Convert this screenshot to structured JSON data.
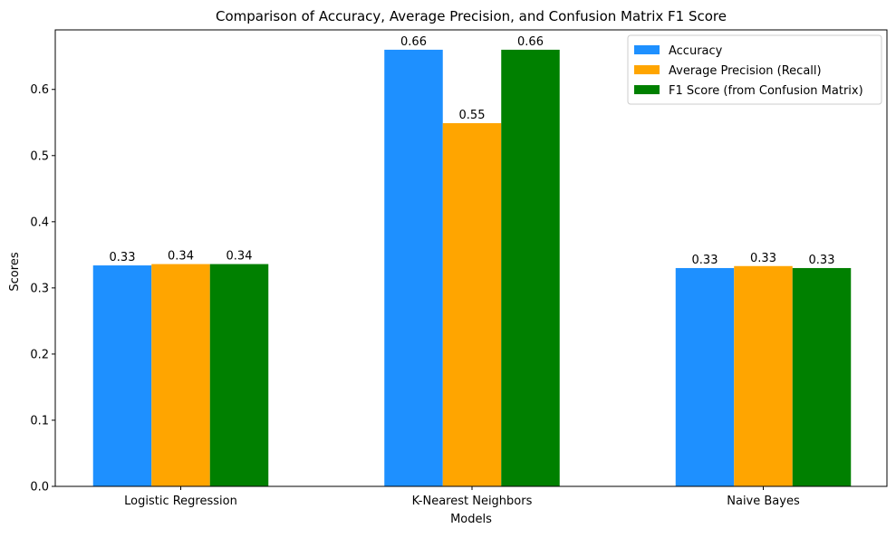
{
  "chart_data": {
    "type": "bar",
    "title": "Comparison of Accuracy, Average Precision, and Confusion Matrix F1 Score",
    "xlabel": "Models",
    "ylabel": "Scores",
    "categories": [
      "Logistic Regression",
      "K-Nearest Neighbors",
      "Naive Bayes"
    ],
    "ylim": [
      0,
      0.69
    ],
    "yticks": [
      0.0,
      0.1,
      0.2,
      0.3,
      0.4,
      0.5,
      0.6
    ],
    "ytick_labels": [
      "0.0",
      "0.1",
      "0.2",
      "0.3",
      "0.4",
      "0.5",
      "0.6"
    ],
    "grid": false,
    "legend_position": "top-right",
    "series": [
      {
        "name": "Accuracy",
        "color": "#1E90FF",
        "values": [
          0.334,
          0.66,
          0.33
        ],
        "labels": [
          "0.33",
          "0.66",
          "0.33"
        ]
      },
      {
        "name": "Average Precision (Recall)",
        "color": "#FFA500",
        "values": [
          0.336,
          0.549,
          0.333
        ],
        "labels": [
          "0.34",
          "0.55",
          "0.33"
        ]
      },
      {
        "name": "F1 Score (from Confusion Matrix)",
        "color": "#008000",
        "values": [
          0.336,
          0.66,
          0.33
        ],
        "labels": [
          "0.34",
          "0.66",
          "0.33"
        ]
      }
    ]
  }
}
